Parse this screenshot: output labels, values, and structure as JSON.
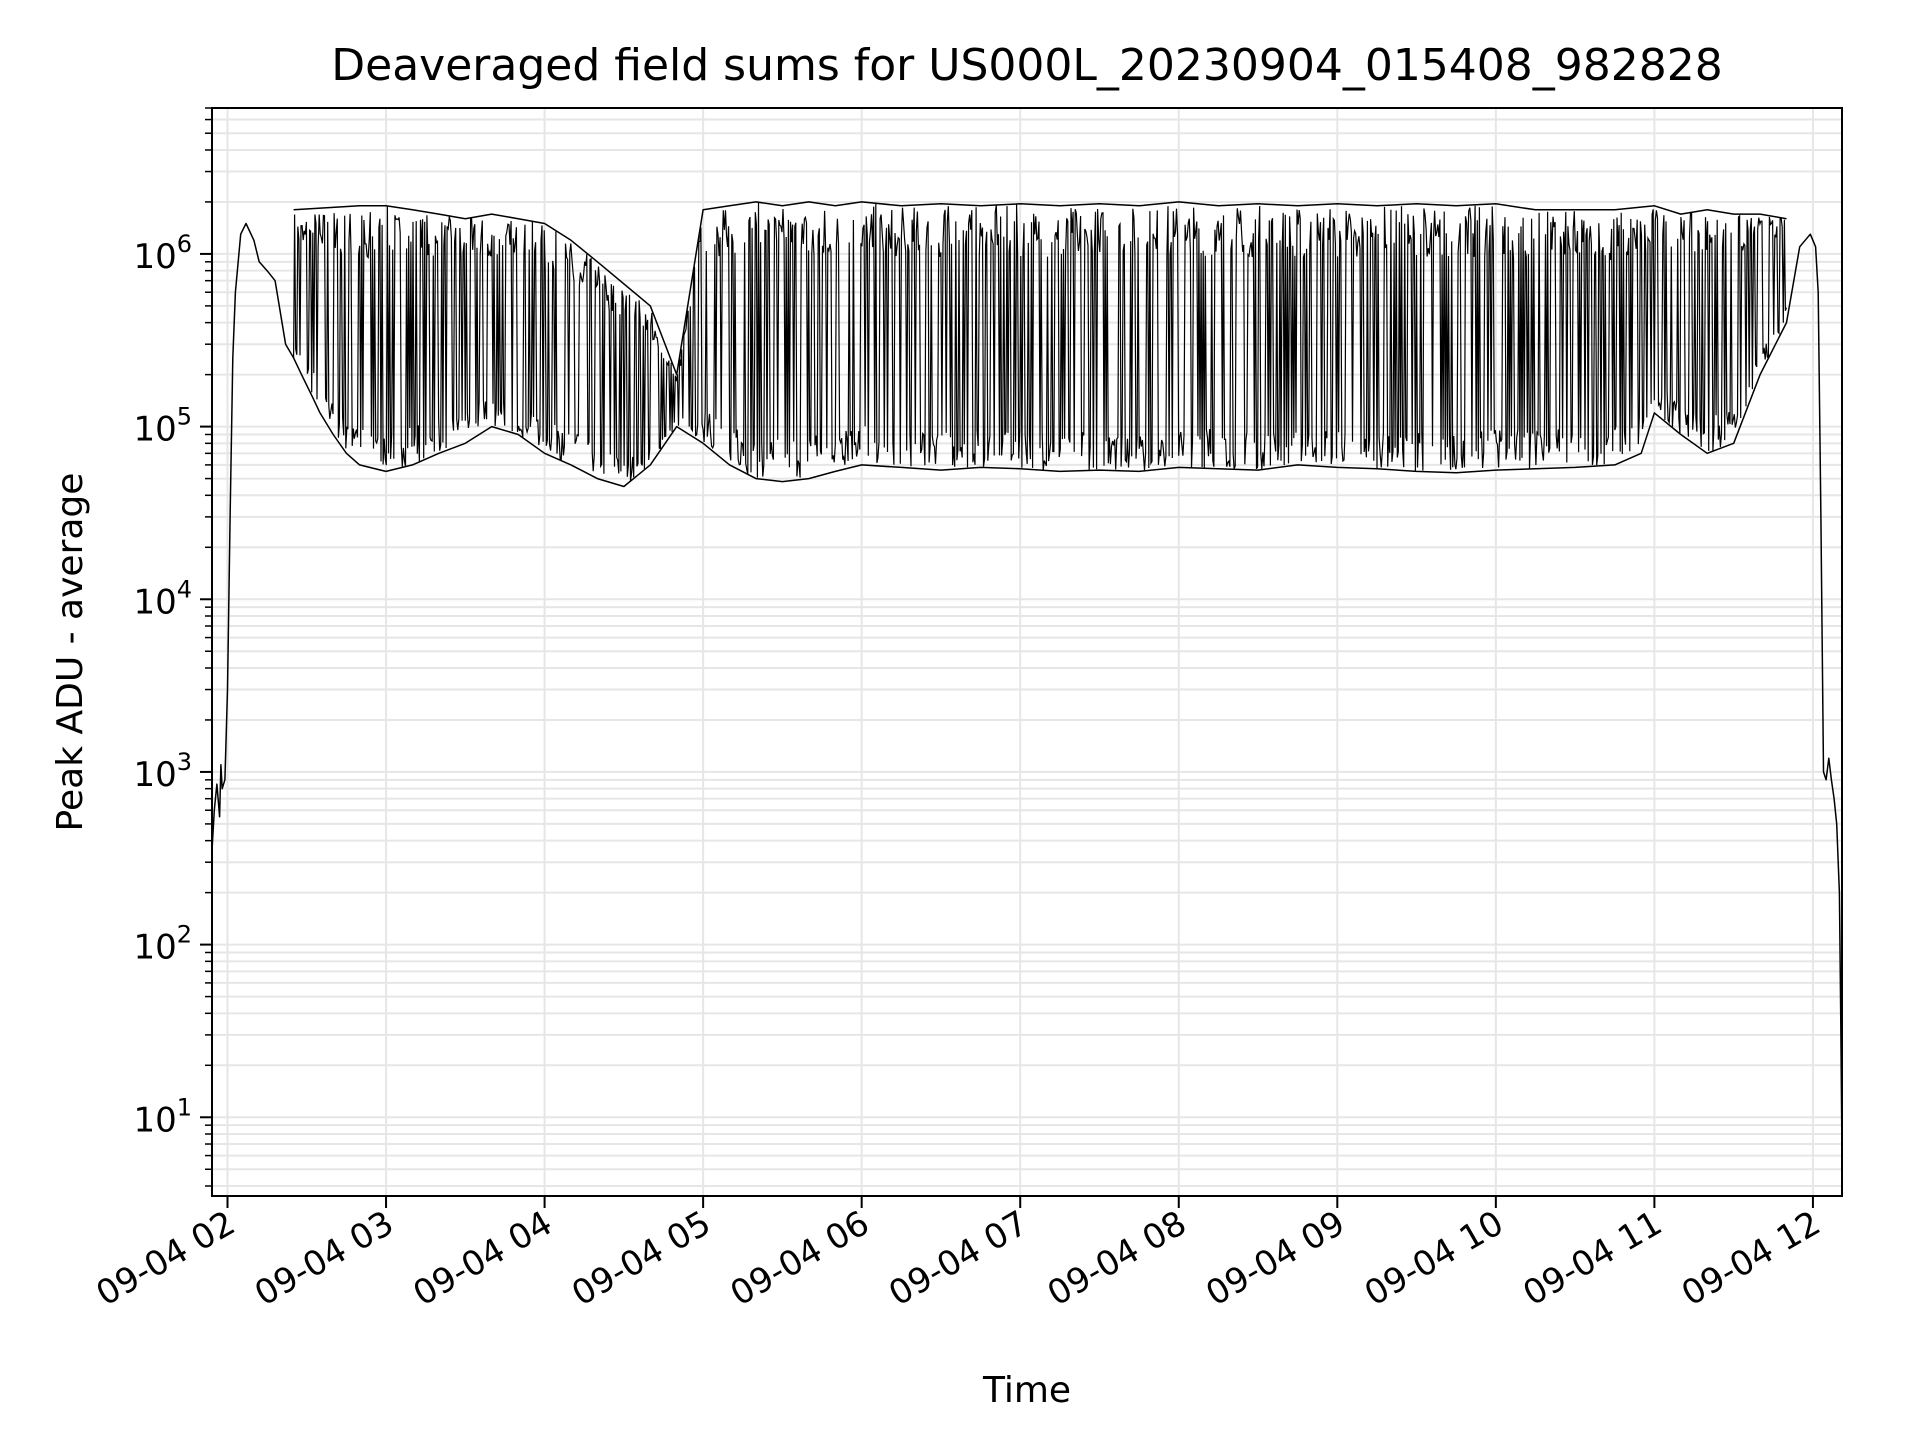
{
  "chart_data": {
    "type": "line",
    "title": "Deaveraged field sums for US000L_20230904_015408_982828",
    "xlabel": "Time",
    "ylabel": "Peak ADU - average",
    "y_scale": "log",
    "ylim": [
      3.5,
      7000000
    ],
    "xlim": [
      "2023-09-04 01:54:08",
      "2023-09-04 12:11:00"
    ],
    "grid": true,
    "line_color": "#000000",
    "grid_color": "#e6e6e6",
    "x_ticks": [
      {
        "value": "2023-09-04 02:00",
        "label": "09-04 02"
      },
      {
        "value": "2023-09-04 03:00",
        "label": "09-04 03"
      },
      {
        "value": "2023-09-04 04:00",
        "label": "09-04 04"
      },
      {
        "value": "2023-09-04 05:00",
        "label": "09-04 05"
      },
      {
        "value": "2023-09-04 06:00",
        "label": "09-04 06"
      },
      {
        "value": "2023-09-04 07:00",
        "label": "09-04 07"
      },
      {
        "value": "2023-09-04 08:00",
        "label": "09-04 08"
      },
      {
        "value": "2023-09-04 09:00",
        "label": "09-04 09"
      },
      {
        "value": "2023-09-04 10:00",
        "label": "09-04 10"
      },
      {
        "value": "2023-09-04 11:00",
        "label": "09-04 11"
      },
      {
        "value": "2023-09-04 12:00",
        "label": "09-04 12"
      }
    ],
    "y_ticks": [
      {
        "value": 10,
        "base": "10",
        "exp": "1"
      },
      {
        "value": 100,
        "base": "10",
        "exp": "2"
      },
      {
        "value": 1000,
        "base": "10",
        "exp": "3"
      },
      {
        "value": 10000,
        "base": "10",
        "exp": "4"
      },
      {
        "value": 100000,
        "base": "10",
        "exp": "5"
      },
      {
        "value": 1000000,
        "base": "10",
        "exp": "6"
      }
    ],
    "series": [
      {
        "x": [
          "2023-09-04 01:54:08",
          "2023-09-04 01:55:00",
          "2023-09-04 01:56:00",
          "2023-09-04 01:57:00",
          "2023-09-04 01:57:30",
          "2023-09-04 01:58:00",
          "2023-09-04 01:59:00",
          "2023-09-04 02:00:00",
          "2023-09-04 02:01:00",
          "2023-09-04 02:02:00",
          "2023-09-04 02:03:00",
          "2023-09-04 02:05:00",
          "2023-09-04 02:07:00",
          "2023-09-04 02:10:00",
          "2023-09-04 02:12:00",
          "2023-09-04 02:15:00",
          "2023-09-04 02:18:00",
          "2023-09-04 02:22:00",
          "2023-09-04 02:25:00",
          "2023-09-04 02:28:00",
          "2023-09-04 02:32:00",
          "2023-09-04 02:35:00",
          "2023-09-04 02:40:00",
          "2023-09-04 02:45:00",
          "2023-09-04 02:50:00",
          "2023-09-04 03:00:00",
          "2023-09-04 03:10:00",
          "2023-09-04 03:20:00",
          "2023-09-04 03:30:00",
          "2023-09-04 03:40:00",
          "2023-09-04 03:50:00",
          "2023-09-04 04:00:00",
          "2023-09-04 04:10:00",
          "2023-09-04 04:20:00",
          "2023-09-04 04:30:00",
          "2023-09-04 04:40:00",
          "2023-09-04 04:50:00",
          "2023-09-04 05:00:00",
          "2023-09-04 05:10:00",
          "2023-09-04 05:20:00",
          "2023-09-04 05:30:00",
          "2023-09-04 05:40:00",
          "2023-09-04 05:50:00",
          "2023-09-04 06:00:00",
          "2023-09-04 06:15:00",
          "2023-09-04 06:30:00",
          "2023-09-04 06:45:00",
          "2023-09-04 07:00:00",
          "2023-09-04 07:15:00",
          "2023-09-04 07:30:00",
          "2023-09-04 07:45:00",
          "2023-09-04 08:00:00",
          "2023-09-04 08:15:00",
          "2023-09-04 08:30:00",
          "2023-09-04 08:45:00",
          "2023-09-04 09:00:00",
          "2023-09-04 09:15:00",
          "2023-09-04 09:30:00",
          "2023-09-04 09:45:00",
          "2023-09-04 10:00:00",
          "2023-09-04 10:15:00",
          "2023-09-04 10:30:00",
          "2023-09-04 10:45:00",
          "2023-09-04 10:55:00",
          "2023-09-04 11:00:00",
          "2023-09-04 11:10:00",
          "2023-09-04 11:20:00",
          "2023-09-04 11:30:00",
          "2023-09-04 11:40:00",
          "2023-09-04 11:50:00",
          "2023-09-04 11:55:00",
          "2023-09-04 11:59:00",
          "2023-09-04 12:01:00",
          "2023-09-04 12:02:00",
          "2023-09-04 12:03:00",
          "2023-09-04 12:04:00",
          "2023-09-04 12:05:00",
          "2023-09-04 12:06:00",
          "2023-09-04 12:07:00",
          "2023-09-04 12:08:00",
          "2023-09-04 12:09:00",
          "2023-09-04 12:10:00",
          "2023-09-04 12:10:30",
          "2023-09-04 12:11:00"
        ],
        "y": [
          350,
          600,
          850,
          550,
          1100,
          800,
          900,
          3000,
          30000,
          250000,
          600000,
          1300000,
          1500000,
          1200000,
          900000,
          800000,
          700000,
          300000,
          250000,
          200000,
          150000,
          120000,
          90000,
          70000,
          60000,
          55000,
          60000,
          70000,
          80000,
          100000,
          90000,
          70000,
          60000,
          50000,
          45000,
          60000,
          100000,
          80000,
          60000,
          50000,
          48000,
          50000,
          55000,
          60000,
          58000,
          56000,
          58000,
          57000,
          55000,
          56000,
          55000,
          58000,
          57000,
          56000,
          60000,
          58000,
          57000,
          55000,
          54000,
          56000,
          57000,
          58000,
          60000,
          70000,
          120000,
          90000,
          70000,
          80000,
          200000,
          400000,
          1100000,
          1300000,
          1100000,
          600000,
          30000,
          1000,
          900,
          1200,
          900,
          700,
          500,
          200,
          40,
          6
        ]
      },
      {
        "x": [
          "2023-09-04 02:25:00",
          "2023-09-04 02:50:00",
          "2023-09-04 03:00:00",
          "2023-09-04 03:10:00",
          "2023-09-04 03:20:00",
          "2023-09-04 03:30:00",
          "2023-09-04 03:40:00",
          "2023-09-04 03:50:00",
          "2023-09-04 04:00:00",
          "2023-09-04 04:10:00",
          "2023-09-04 04:20:00",
          "2023-09-04 04:40:00",
          "2023-09-04 04:50:00",
          "2023-09-04 05:00:00",
          "2023-09-04 05:10:00",
          "2023-09-04 05:20:00",
          "2023-09-04 05:30:00",
          "2023-09-04 05:40:00",
          "2023-09-04 05:50:00",
          "2023-09-04 06:00:00",
          "2023-09-04 06:15:00",
          "2023-09-04 06:30:00",
          "2023-09-04 06:45:00",
          "2023-09-04 07:00:00",
          "2023-09-04 07:15:00",
          "2023-09-04 07:30:00",
          "2023-09-04 07:45:00",
          "2023-09-04 08:00:00",
          "2023-09-04 08:15:00",
          "2023-09-04 08:30:00",
          "2023-09-04 08:45:00",
          "2023-09-04 09:00:00",
          "2023-09-04 09:15:00",
          "2023-09-04 09:30:00",
          "2023-09-04 09:45:00",
          "2023-09-04 10:00:00",
          "2023-09-04 10:15:00",
          "2023-09-04 10:30:00",
          "2023-09-04 10:45:00",
          "2023-09-04 11:00:00",
          "2023-09-04 11:10:00",
          "2023-09-04 11:20:00",
          "2023-09-04 11:30:00",
          "2023-09-04 11:40:00",
          "2023-09-04 11:50:00"
        ],
        "y": [
          1800000,
          1900000,
          1900000,
          1800000,
          1700000,
          1600000,
          1700000,
          1600000,
          1500000,
          1200000,
          900000,
          500000,
          200000,
          1800000,
          1900000,
          2000000,
          1900000,
          2000000,
          1900000,
          2000000,
          1900000,
          1950000,
          1900000,
          1950000,
          1900000,
          1950000,
          1900000,
          2000000,
          1900000,
          1950000,
          1900000,
          1950000,
          1900000,
          1950000,
          1900000,
          1950000,
          1800000,
          1800000,
          1800000,
          1900000,
          1700000,
          1800000,
          1700000,
          1700000,
          1600000
        ]
      }
    ]
  }
}
